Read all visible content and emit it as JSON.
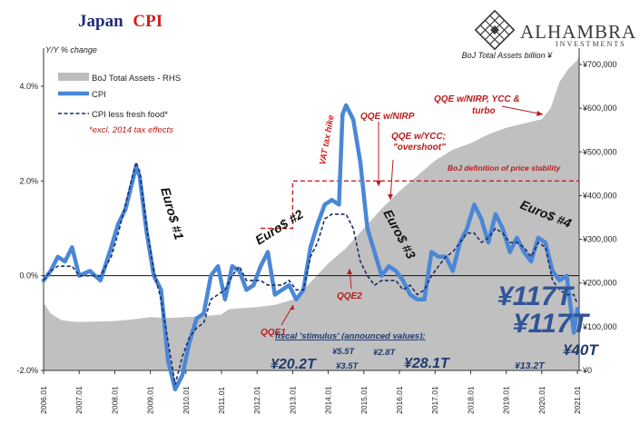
{
  "chart_data": {
    "type": "line",
    "title_part1": "Japan",
    "title_part2": "CPI",
    "ylabel_left": "Y/Y % change",
    "ylabel_right": "BoJ Total Assets billion ¥",
    "ylim_left": [
      -2.0,
      5.0
    ],
    "ylim_right": [
      0,
      780000
    ],
    "yticks_left": [
      "4.0%",
      "2.0%",
      "0.0%",
      "-2.0%"
    ],
    "yticks_left_values": [
      4.0,
      2.0,
      0.0,
      -2.0
    ],
    "yticks_right": [
      "¥700,000",
      "¥600,000",
      "¥500,000",
      "¥400,000",
      "¥300,000",
      "¥200,000",
      "¥100,000",
      "¥0"
    ],
    "yticks_right_values": [
      700000,
      600000,
      500000,
      400000,
      300000,
      200000,
      100000,
      0
    ],
    "xticks": [
      "2006.01",
      "2007.01",
      "2008.01",
      "2009.01",
      "2010.01",
      "2011.01",
      "2012.01",
      "2013.01",
      "2014.01",
      "2015.01",
      "2016.01",
      "2017.01",
      "2018.01",
      "2019.01",
      "2020.01",
      "2021.01"
    ],
    "xticks_values": [
      2006.0,
      2007.0,
      2008.0,
      2009.0,
      2010.0,
      2011.0,
      2012.0,
      2013.0,
      2014.0,
      2015.0,
      2016.0,
      2017.0,
      2018.0,
      2019.0,
      2020.0,
      2021.0
    ],
    "x_range": [
      2006.0,
      2021.05
    ],
    "legend_placement": "top-left",
    "legend": [
      {
        "label": "BoJ Total Assets - RHS",
        "kind": "area"
      },
      {
        "label": "CPI",
        "kind": "thick-line"
      },
      {
        "label": "CPI less fresh food*",
        "kind": "dashed-line"
      },
      {
        "label": "*excl. 2014 tax effects",
        "kind": "note"
      }
    ],
    "series": [
      {
        "name": "BoJ Total Assets - RHS",
        "axis": "right",
        "color": "#c0c0c0",
        "x": [
          2006.0,
          2006.2,
          2006.5,
          2006.8,
          2007.0,
          2007.5,
          2008.0,
          2008.5,
          2009.0,
          2009.5,
          2010.0,
          2010.5,
          2011.0,
          2011.2,
          2011.5,
          2012.0,
          2012.5,
          2013.0,
          2013.3,
          2013.6,
          2014.0,
          2014.5,
          2015.0,
          2015.5,
          2016.0,
          2016.5,
          2017.0,
          2017.5,
          2018.0,
          2018.5,
          2019.0,
          2019.5,
          2020.0,
          2020.25,
          2020.5,
          2020.75,
          2021.0,
          2021.05
        ],
        "values": [
          155000,
          130000,
          115000,
          112000,
          111000,
          112000,
          113000,
          117000,
          122000,
          120000,
          122000,
          124000,
          128000,
          140000,
          142000,
          145000,
          150000,
          162000,
          185000,
          210000,
          245000,
          280000,
          325000,
          370000,
          410000,
          445000,
          480000,
          505000,
          520000,
          540000,
          555000,
          565000,
          575000,
          600000,
          660000,
          690000,
          710000,
          720000
        ]
      },
      {
        "name": "CPI",
        "axis": "left",
        "color": "#4a87d6",
        "x": [
          2006.0,
          2006.2,
          2006.4,
          2006.6,
          2006.8,
          2007.0,
          2007.3,
          2007.6,
          2007.9,
          2008.1,
          2008.3,
          2008.5,
          2008.6,
          2008.7,
          2008.9,
          2009.1,
          2009.3,
          2009.5,
          2009.7,
          2009.9,
          2010.1,
          2010.3,
          2010.5,
          2010.7,
          2010.9,
          2011.1,
          2011.3,
          2011.5,
          2011.7,
          2011.9,
          2012.1,
          2012.3,
          2012.5,
          2012.7,
          2012.9,
          2013.1,
          2013.3,
          2013.5,
          2013.7,
          2013.9,
          2014.1,
          2014.3,
          2014.4,
          2014.5,
          2014.7,
          2014.9,
          2015.1,
          2015.3,
          2015.5,
          2015.7,
          2015.9,
          2016.1,
          2016.3,
          2016.5,
          2016.7,
          2016.9,
          2017.1,
          2017.3,
          2017.5,
          2017.7,
          2017.9,
          2018.1,
          2018.3,
          2018.5,
          2018.7,
          2018.9,
          2019.1,
          2019.3,
          2019.5,
          2019.7,
          2019.9,
          2020.1,
          2020.3,
          2020.5,
          2020.7,
          2020.9,
          2021.0
        ],
        "values": [
          -0.1,
          0.1,
          0.4,
          0.3,
          0.6,
          0.0,
          0.1,
          -0.1,
          0.6,
          1.1,
          1.4,
          2.0,
          2.3,
          2.1,
          0.9,
          0.0,
          -0.3,
          -1.8,
          -2.4,
          -2.1,
          -1.4,
          -0.9,
          -0.8,
          0.0,
          0.2,
          -0.5,
          0.2,
          0.1,
          -0.3,
          -0.2,
          0.2,
          0.5,
          -0.4,
          -0.3,
          -0.2,
          -0.5,
          -0.3,
          0.6,
          1.1,
          1.5,
          1.6,
          1.5,
          3.4,
          3.6,
          3.3,
          2.4,
          1.0,
          0.5,
          0.0,
          0.2,
          0.1,
          -0.1,
          -0.4,
          -0.5,
          -0.5,
          0.5,
          0.4,
          0.4,
          0.1,
          0.7,
          1.0,
          1.5,
          1.2,
          0.7,
          1.3,
          1.0,
          0.5,
          0.8,
          0.5,
          0.3,
          0.8,
          0.7,
          0.1,
          -0.1,
          0.0,
          -1.2,
          -0.7
        ]
      },
      {
        "name": "CPI less fresh food*",
        "axis": "left",
        "color": "#1a2d6b",
        "x": [
          2006.0,
          2006.2,
          2006.4,
          2006.6,
          2006.8,
          2007.0,
          2007.3,
          2007.6,
          2007.9,
          2008.1,
          2008.3,
          2008.5,
          2008.6,
          2008.7,
          2008.9,
          2009.1,
          2009.3,
          2009.5,
          2009.7,
          2009.9,
          2010.1,
          2010.3,
          2010.5,
          2010.7,
          2010.9,
          2011.1,
          2011.3,
          2011.5,
          2011.7,
          2011.9,
          2012.1,
          2012.3,
          2012.5,
          2012.7,
          2012.9,
          2013.1,
          2013.3,
          2013.5,
          2013.7,
          2013.9,
          2014.1,
          2014.3,
          2014.5,
          2014.7,
          2014.9,
          2015.1,
          2015.3,
          2015.5,
          2015.7,
          2015.9,
          2016.1,
          2016.3,
          2016.5,
          2016.7,
          2016.9,
          2017.1,
          2017.3,
          2017.5,
          2017.7,
          2017.9,
          2018.1,
          2018.3,
          2018.5,
          2018.7,
          2018.9,
          2019.1,
          2019.3,
          2019.5,
          2019.7,
          2019.9,
          2020.1,
          2020.3,
          2020.5,
          2020.7,
          2020.9,
          2021.0
        ],
        "values": [
          -0.1,
          0.1,
          0.2,
          0.2,
          0.2,
          0.0,
          0.0,
          0.0,
          0.4,
          0.9,
          1.5,
          2.1,
          2.4,
          2.2,
          1.0,
          0.1,
          -0.5,
          -1.4,
          -2.3,
          -1.7,
          -1.3,
          -1.1,
          -1.0,
          -0.5,
          -0.4,
          -0.3,
          0.0,
          0.2,
          -0.1,
          -0.1,
          -0.1,
          -0.2,
          -0.2,
          -0.2,
          -0.1,
          -0.3,
          -0.3,
          0.4,
          0.7,
          1.2,
          1.3,
          1.3,
          1.3,
          1.0,
          0.3,
          0.0,
          -0.2,
          -0.1,
          -0.1,
          -0.1,
          -0.3,
          -0.2,
          -0.4,
          -0.3,
          0.0,
          0.2,
          0.4,
          0.5,
          0.7,
          0.9,
          0.9,
          0.7,
          0.8,
          1.0,
          0.9,
          0.7,
          0.7,
          0.6,
          0.4,
          0.7,
          0.6,
          -0.1,
          -0.3,
          -0.4,
          -0.4,
          -0.6
        ]
      },
      {
        "name": "BoJ definition of price stability",
        "axis": "left",
        "color": "#d11f1f",
        "step": true,
        "x": [
          2012.1,
          2013.0,
          2013.0,
          2021.05
        ],
        "values": [
          1.0,
          1.0,
          2.0,
          2.0
        ]
      }
    ],
    "annotations": {
      "rotated_labels": [
        {
          "id": "euro1",
          "text": "Euro$ #1",
          "color": "#111111"
        },
        {
          "id": "euro2",
          "text": "Euro$ #2",
          "color": "#111111"
        },
        {
          "id": "euro3",
          "text": "Euro$ #3",
          "color": "#111111"
        },
        {
          "id": "euro4",
          "text": "Euro$ #4",
          "color": "#111111"
        },
        {
          "id": "vat",
          "text": "VAT tax hike",
          "color": "#d11f1f"
        }
      ],
      "red_labels": {
        "qqe1": "QQE1",
        "qqe2": "QQE2",
        "qqe_nirp": "QQE w/NIRP",
        "qqe_ycc_1": "QQE w/YCC;",
        "qqe_ycc_2": "\"overshoot\"",
        "qqe_turbo_1": "QQE w/NIRP, YCC &",
        "qqe_turbo_2": "turbo",
        "price_stability": "BoJ definition of price stability"
      },
      "fiscal": {
        "heading": "fiscal 'stimulus' (announced values):",
        "values": [
          {
            "id": "v20",
            "text": "¥20.2T",
            "size": "large"
          },
          {
            "id": "v55",
            "text": "¥5.5T",
            "size": "small"
          },
          {
            "id": "v35",
            "text": "¥3.5T",
            "size": "small"
          },
          {
            "id": "v28",
            "text": "¥2.8T",
            "size": "small"
          },
          {
            "id": "v281",
            "text": "¥28.1T",
            "size": "large"
          },
          {
            "id": "v132",
            "text": "¥13.2T",
            "size": "small"
          },
          {
            "id": "v117a",
            "text": "¥117T",
            "size": "huge"
          },
          {
            "id": "v117b",
            "text": "¥117T",
            "size": "huge"
          },
          {
            "id": "v40",
            "text": "¥40T",
            "size": "large"
          }
        ]
      }
    }
  },
  "brand": {
    "name": "ALHAMBRA",
    "sub": "INVESTMENTS"
  },
  "colors": {
    "title_dark": "#1f2f7a",
    "title_red": "#d11f1f",
    "cpi": "#4a87d6",
    "core": "#1a2d6b",
    "area": "#c0c0c0",
    "annot_red": "#b81c1c",
    "fiscal_text": "#1f3a6e",
    "big_value": "#2f5597"
  }
}
